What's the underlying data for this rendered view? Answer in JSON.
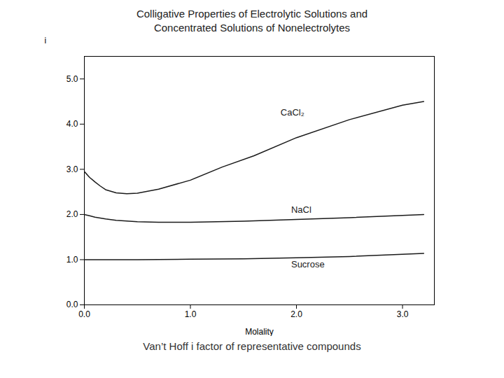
{
  "chart_data": {
    "type": "line",
    "title": [
      "Colligative Properties of Electrolytic Solutions and",
      "Concentrated Solutions of Nonelectrolytes"
    ],
    "subtitle": "Van’t Hoff i factor of representative compounds",
    "xlabel": "Molality",
    "ylabel": "i",
    "xlim": [
      0,
      3.3
    ],
    "ylim": [
      0,
      5.5
    ],
    "xticks": [
      0,
      1,
      2,
      3
    ],
    "yticks": [
      0,
      1,
      2,
      3,
      4,
      5
    ],
    "grid": false,
    "color": "#1a1a1a",
    "series": [
      {
        "name": "CaCl₂",
        "x": [
          0.0,
          0.05,
          0.1,
          0.15,
          0.2,
          0.3,
          0.4,
          0.5,
          0.7,
          1.0,
          1.3,
          1.6,
          2.0,
          2.5,
          3.0,
          3.2
        ],
        "values": [
          2.95,
          2.82,
          2.72,
          2.63,
          2.55,
          2.48,
          2.46,
          2.47,
          2.56,
          2.76,
          3.05,
          3.3,
          3.7,
          4.1,
          4.42,
          4.5
        ]
      },
      {
        "name": "NaCl",
        "x": [
          0.0,
          0.05,
          0.1,
          0.2,
          0.3,
          0.5,
          0.7,
          1.0,
          1.5,
          2.0,
          2.5,
          3.0,
          3.2
        ],
        "values": [
          2.0,
          1.97,
          1.94,
          1.9,
          1.87,
          1.84,
          1.83,
          1.83,
          1.85,
          1.89,
          1.93,
          1.98,
          2.0
        ]
      },
      {
        "name": "Sucrose",
        "x": [
          0.0,
          0.05,
          0.1,
          0.2,
          0.5,
          1.0,
          1.5,
          2.0,
          2.5,
          3.0,
          3.2
        ],
        "values": [
          1.0,
          1.0,
          1.0,
          1.0,
          1.0,
          1.01,
          1.02,
          1.04,
          1.07,
          1.12,
          1.14
        ]
      }
    ],
    "annotations": [
      {
        "text": "CaCl₂",
        "x": 1.85,
        "y": 4.25
      },
      {
        "text": "NaCl",
        "x": 1.95,
        "y": 2.1
      },
      {
        "text": "Sucrose",
        "x": 1.95,
        "y": 0.9
      }
    ]
  }
}
